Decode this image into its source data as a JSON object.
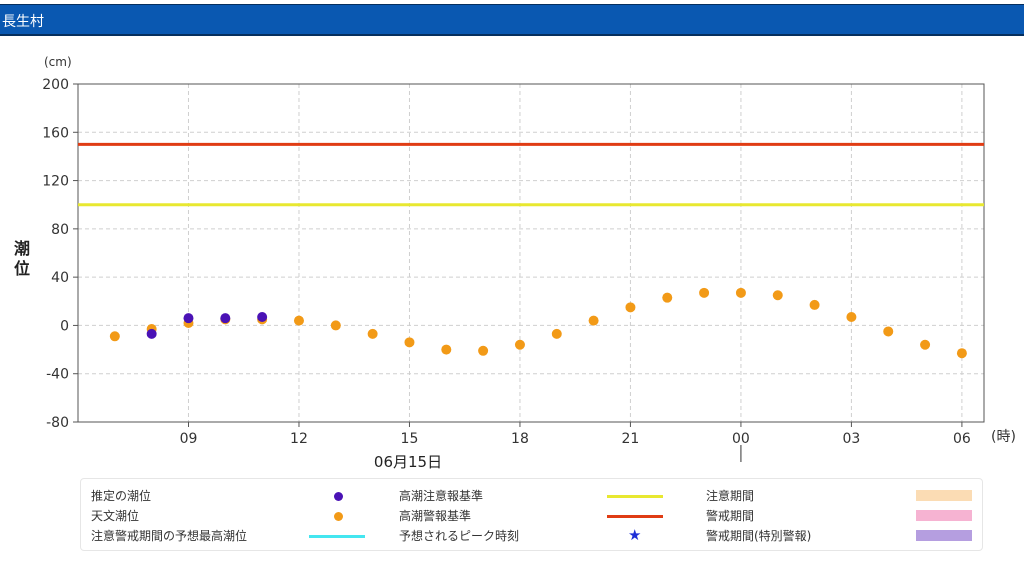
{
  "header": {
    "title": "長生村",
    "bg": "#0a58b1"
  },
  "chart_data": {
    "type": "scatter",
    "unit_label": "(cm)",
    "ylabel": "潮位",
    "xunit": "(時)",
    "date_label": "06月15日",
    "ylim": [
      -80,
      200
    ],
    "yticks": [
      -80,
      -40,
      0,
      40,
      80,
      120,
      160,
      200
    ],
    "x_hours": [
      7,
      8,
      9,
      10,
      11,
      12,
      13,
      14,
      15,
      16,
      17,
      18,
      19,
      20,
      21,
      22,
      23,
      24,
      25,
      26,
      27,
      28,
      29,
      30
    ],
    "xtick_labels": [
      "09",
      "12",
      "15",
      "18",
      "21",
      "00",
      "03",
      "06"
    ],
    "xtick_hours": [
      9,
      12,
      15,
      18,
      21,
      24,
      27,
      30
    ],
    "grid": true,
    "series": [
      {
        "name": "天文潮位",
        "color": "#f29a17",
        "x": [
          7,
          8,
          9,
          10,
          11,
          12,
          13,
          14,
          15,
          16,
          17,
          18,
          19,
          20,
          21,
          22,
          23,
          24,
          25,
          26,
          27,
          28,
          29,
          30
        ],
        "values": [
          -9,
          -3,
          2,
          5,
          5,
          4,
          0,
          -7,
          -14,
          -20,
          -21,
          -16,
          -7,
          4,
          15,
          23,
          27,
          27,
          25,
          17,
          7,
          -5,
          -16,
          -23
        ]
      },
      {
        "name": "推定の潮位",
        "color": "#4a12b5",
        "x": [
          8,
          9,
          10,
          11
        ],
        "values": [
          -7,
          6,
          6,
          7
        ]
      }
    ],
    "reference_lines": [
      {
        "name": "高潮注意報基準",
        "value": 100,
        "color": "#e8e830"
      },
      {
        "name": "高潮警報基準",
        "value": 150,
        "color": "#e03c14"
      }
    ]
  },
  "legend": {
    "items": [
      {
        "label": "推定の潮位",
        "kind": "dot",
        "color": "#4a12b5"
      },
      {
        "label": "天文潮位",
        "kind": "dot",
        "color": "#f29a17"
      },
      {
        "label": "注意警戒期間の予想最高潮位",
        "kind": "line",
        "color": "#44e6f0"
      },
      {
        "label": "高潮注意報基準",
        "kind": "line",
        "color": "#e8e830"
      },
      {
        "label": "高潮警報基準",
        "kind": "line",
        "color": "#e03c14"
      },
      {
        "label": "予想されるピーク時刻",
        "kind": "star",
        "color": "#1f2fd6"
      },
      {
        "label": "注意期間",
        "kind": "box",
        "color": "#fbdcb4"
      },
      {
        "label": "警戒期間",
        "kind": "box",
        "color": "#f6b3d2"
      },
      {
        "label": "警戒期間(特別警報)",
        "kind": "box",
        "color": "#b59ee0"
      }
    ]
  }
}
